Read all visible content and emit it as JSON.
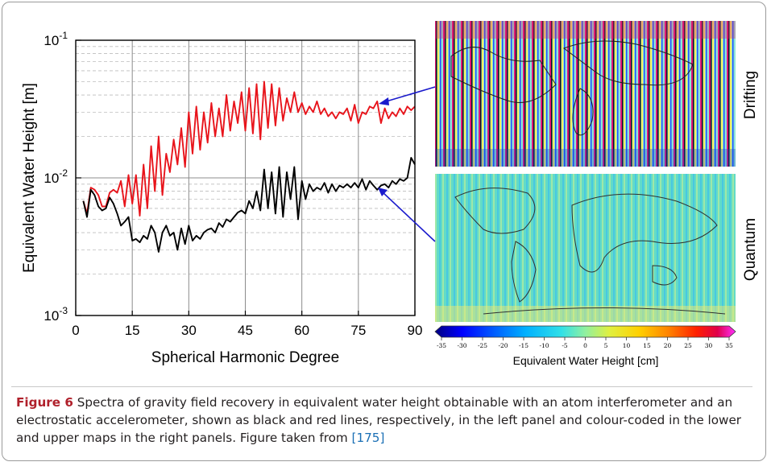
{
  "chart_data": [
    {
      "type": "line",
      "xlabel": "Spherical Harmonic Degree",
      "ylabel": "Equivalent Water Height [m]",
      "xlim": [
        0,
        90
      ],
      "ylim": [
        0.001,
        0.1
      ],
      "yscale": "log",
      "xticks": [
        "0",
        "15",
        "30",
        "45",
        "60",
        "75",
        "90"
      ],
      "yticks": [
        "10-3",
        "10-2",
        "10-1"
      ],
      "grid": true,
      "series": [
        {
          "color": "#e8141b",
          "x": [
            2,
            3,
            4,
            5,
            6,
            7,
            8,
            9,
            10,
            11,
            12,
            13,
            14,
            15,
            16,
            17,
            18,
            19,
            20,
            21,
            22,
            23,
            24,
            25,
            26,
            27,
            28,
            29,
            30,
            31,
            32,
            33,
            34,
            35,
            36,
            37,
            38,
            39,
            40,
            41,
            42,
            43,
            44,
            45,
            46,
            47,
            48,
            49,
            50,
            51,
            52,
            53,
            54,
            55,
            56,
            57,
            58,
            59,
            60,
            61,
            62,
            63,
            64,
            65,
            66,
            67,
            68,
            69,
            70,
            71,
            72,
            73,
            74,
            75,
            76,
            77,
            78,
            79,
            80,
            81,
            82,
            83,
            84,
            85,
            86,
            87,
            88,
            89,
            90
          ],
          "y": [
            0.0068,
            0.0055,
            0.0085,
            0.0082,
            0.0075,
            0.0062,
            0.0062,
            0.0078,
            0.0082,
            0.0078,
            0.0095,
            0.0062,
            0.0105,
            0.0065,
            0.0105,
            0.0053,
            0.0125,
            0.006,
            0.017,
            0.008,
            0.02,
            0.0075,
            0.015,
            0.011,
            0.019,
            0.0125,
            0.023,
            0.012,
            0.03,
            0.015,
            0.033,
            0.016,
            0.03,
            0.018,
            0.035,
            0.02,
            0.032,
            0.02,
            0.04,
            0.022,
            0.036,
            0.025,
            0.042,
            0.022,
            0.045,
            0.021,
            0.048,
            0.019,
            0.05,
            0.023,
            0.048,
            0.024,
            0.045,
            0.026,
            0.038,
            0.03,
            0.042,
            0.03,
            0.035,
            0.029,
            0.033,
            0.03,
            0.036,
            0.029,
            0.032,
            0.028,
            0.03,
            0.027,
            0.03,
            0.029,
            0.032,
            0.026,
            0.034,
            0.025,
            0.03,
            0.029,
            0.033,
            0.032,
            0.036,
            0.025,
            0.032,
            0.027,
            0.03,
            0.028,
            0.032,
            0.029,
            0.033,
            0.031,
            0.033
          ]
        },
        {
          "color": "#000000",
          "x": [
            2,
            3,
            4,
            5,
            6,
            7,
            8,
            9,
            10,
            11,
            12,
            13,
            14,
            15,
            16,
            17,
            18,
            19,
            20,
            21,
            22,
            23,
            24,
            25,
            26,
            27,
            28,
            29,
            30,
            31,
            32,
            33,
            34,
            35,
            36,
            37,
            38,
            39,
            40,
            41,
            42,
            43,
            44,
            45,
            46,
            47,
            48,
            49,
            50,
            51,
            52,
            53,
            54,
            55,
            56,
            57,
            58,
            59,
            60,
            61,
            62,
            63,
            64,
            65,
            66,
            67,
            68,
            69,
            70,
            71,
            72,
            73,
            74,
            75,
            76,
            77,
            78,
            79,
            80,
            81,
            82,
            83,
            84,
            85,
            86,
            87,
            88,
            89,
            90
          ],
          "y": [
            0.0068,
            0.0052,
            0.0082,
            0.0075,
            0.0062,
            0.0058,
            0.006,
            0.0072,
            0.0065,
            0.0055,
            0.0045,
            0.0048,
            0.0052,
            0.0035,
            0.0036,
            0.0034,
            0.0038,
            0.0036,
            0.0045,
            0.004,
            0.0029,
            0.004,
            0.0045,
            0.0038,
            0.004,
            0.003,
            0.0043,
            0.0033,
            0.0045,
            0.0035,
            0.0038,
            0.0036,
            0.004,
            0.0042,
            0.0043,
            0.004,
            0.0047,
            0.0044,
            0.005,
            0.0048,
            0.0052,
            0.0056,
            0.0058,
            0.0055,
            0.0068,
            0.006,
            0.008,
            0.0058,
            0.0115,
            0.006,
            0.011,
            0.0055,
            0.012,
            0.0052,
            0.011,
            0.007,
            0.012,
            0.005,
            0.0095,
            0.007,
            0.009,
            0.008,
            0.0085,
            0.0082,
            0.0092,
            0.0078,
            0.009,
            0.008,
            0.0088,
            0.0085,
            0.009,
            0.0085,
            0.0092,
            0.0085,
            0.0098,
            0.0082,
            0.0095,
            0.0088,
            0.0082,
            0.0088,
            0.009,
            0.0085,
            0.0095,
            0.009,
            0.0098,
            0.0095,
            0.01,
            0.014,
            0.0125
          ]
        }
      ]
    },
    {
      "type": "heatmap",
      "panels": [
        "Drifting",
        "Quantum"
      ],
      "colorbar_label": "Equivalent Water Height [cm]",
      "colorbar_ticks": [
        "-35",
        "-30",
        "-25",
        "-20",
        "-15",
        "-10",
        "-5",
        "0",
        "5",
        "10",
        "15",
        "20",
        "25",
        "30",
        "35"
      ],
      "colormap": [
        "#000080",
        "#0000ff",
        "#0060ff",
        "#00b0ff",
        "#30e0e8",
        "#90f0a0",
        "#e0f040",
        "#ffd000",
        "#ff8000",
        "#ff2000",
        "#e0004a",
        "#ff30ff"
      ]
    }
  ],
  "caption": {
    "label": "Figure 6",
    "text": "Spectra of gravity field recovery in equivalent water height obtainable with an atom interferometer and an electrostatic accelerometer, shown as black and red lines, respectively, in the left panel and colour-coded in the lower and upper maps in the right panels. Figure taken from ",
    "ref": "[175]"
  },
  "yticks_display": [
    {
      "base": "10",
      "exp": "-3"
    },
    {
      "base": "10",
      "exp": "-2"
    },
    {
      "base": "10",
      "exp": "-1"
    }
  ]
}
